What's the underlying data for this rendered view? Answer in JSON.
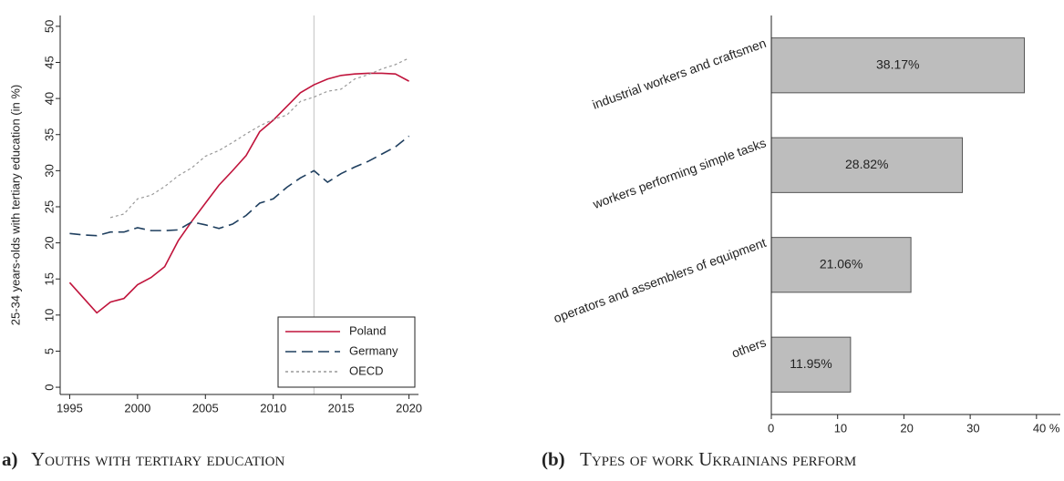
{
  "chart_data": [
    {
      "type": "line",
      "y_label": "25-34 years-olds with tertiary education (in %)",
      "caption_label": "a)",
      "caption": "Youths with tertiary education",
      "x": [
        1995,
        1996,
        1997,
        1998,
        1999,
        2000,
        2001,
        2002,
        2003,
        2004,
        2005,
        2006,
        2007,
        2008,
        2009,
        2010,
        2011,
        2012,
        2013,
        2014,
        2015,
        2016,
        2017,
        2018,
        2019,
        2020
      ],
      "series": [
        {
          "name": "Poland",
          "color": "#c0143c",
          "dash": "solid",
          "values": [
            14.5,
            12.4,
            10.3,
            11.8,
            12.3,
            14.2,
            15.2,
            16.7,
            20.3,
            23,
            25.5,
            28,
            30,
            32.1,
            35.4,
            37,
            38.9,
            40.8,
            41.9,
            42.7,
            43.2,
            43.4,
            43.5,
            43.5,
            43.4,
            42.4
          ]
        },
        {
          "name": "Germany",
          "color": "#1f3f5f",
          "dash": "long",
          "values": [
            21.3,
            21.1,
            21,
            21.5,
            21.5,
            22.1,
            21.7,
            21.7,
            21.8,
            22.9,
            22.5,
            22,
            22.6,
            23.8,
            25.5,
            26.1,
            27.7,
            29,
            30,
            28.4,
            29.6,
            30.5,
            31.3,
            32.3,
            33.3,
            34.8
          ]
        },
        {
          "name": "OECD",
          "color": "#999999",
          "dash": "dot",
          "values": [
            null,
            null,
            null,
            23.5,
            24,
            26.1,
            26.6,
            27.8,
            29.3,
            30.4,
            32,
            32.8,
            33.9,
            35.1,
            36.2,
            37.1,
            37.7,
            39.6,
            40.2,
            41,
            41.3,
            42.7,
            43.3,
            44.1,
            44.7,
            45.6
          ]
        }
      ],
      "xlim": [
        1994.3,
        2020.7
      ],
      "xticks": [
        1995,
        2000,
        2005,
        2010,
        2015,
        2020
      ],
      "ylim": [
        -1,
        51.5
      ],
      "yticks": [
        0,
        5,
        10,
        15,
        20,
        25,
        30,
        35,
        40,
        45,
        50
      ],
      "reference_line_x": 2013,
      "legend": "lower right"
    },
    {
      "type": "bar",
      "orientation": "horizontal",
      "caption_label": "(b)",
      "caption": "Types of work Ukrainians perform",
      "categories": [
        "industrial workers and craftsmen",
        "workers performing simple tasks",
        "operators and assemblers of equipment",
        "others"
      ],
      "values": [
        38.17,
        28.82,
        21.06,
        11.95
      ],
      "value_labels": [
        "38.17%",
        "28.82%",
        "21.06%",
        "11.95%"
      ],
      "color": "#bdbdbd",
      "xlim": [
        0,
        43.6
      ],
      "xticks": [
        0,
        10,
        20,
        30,
        {
          "value": 40,
          "label": "40 %"
        }
      ]
    }
  ]
}
